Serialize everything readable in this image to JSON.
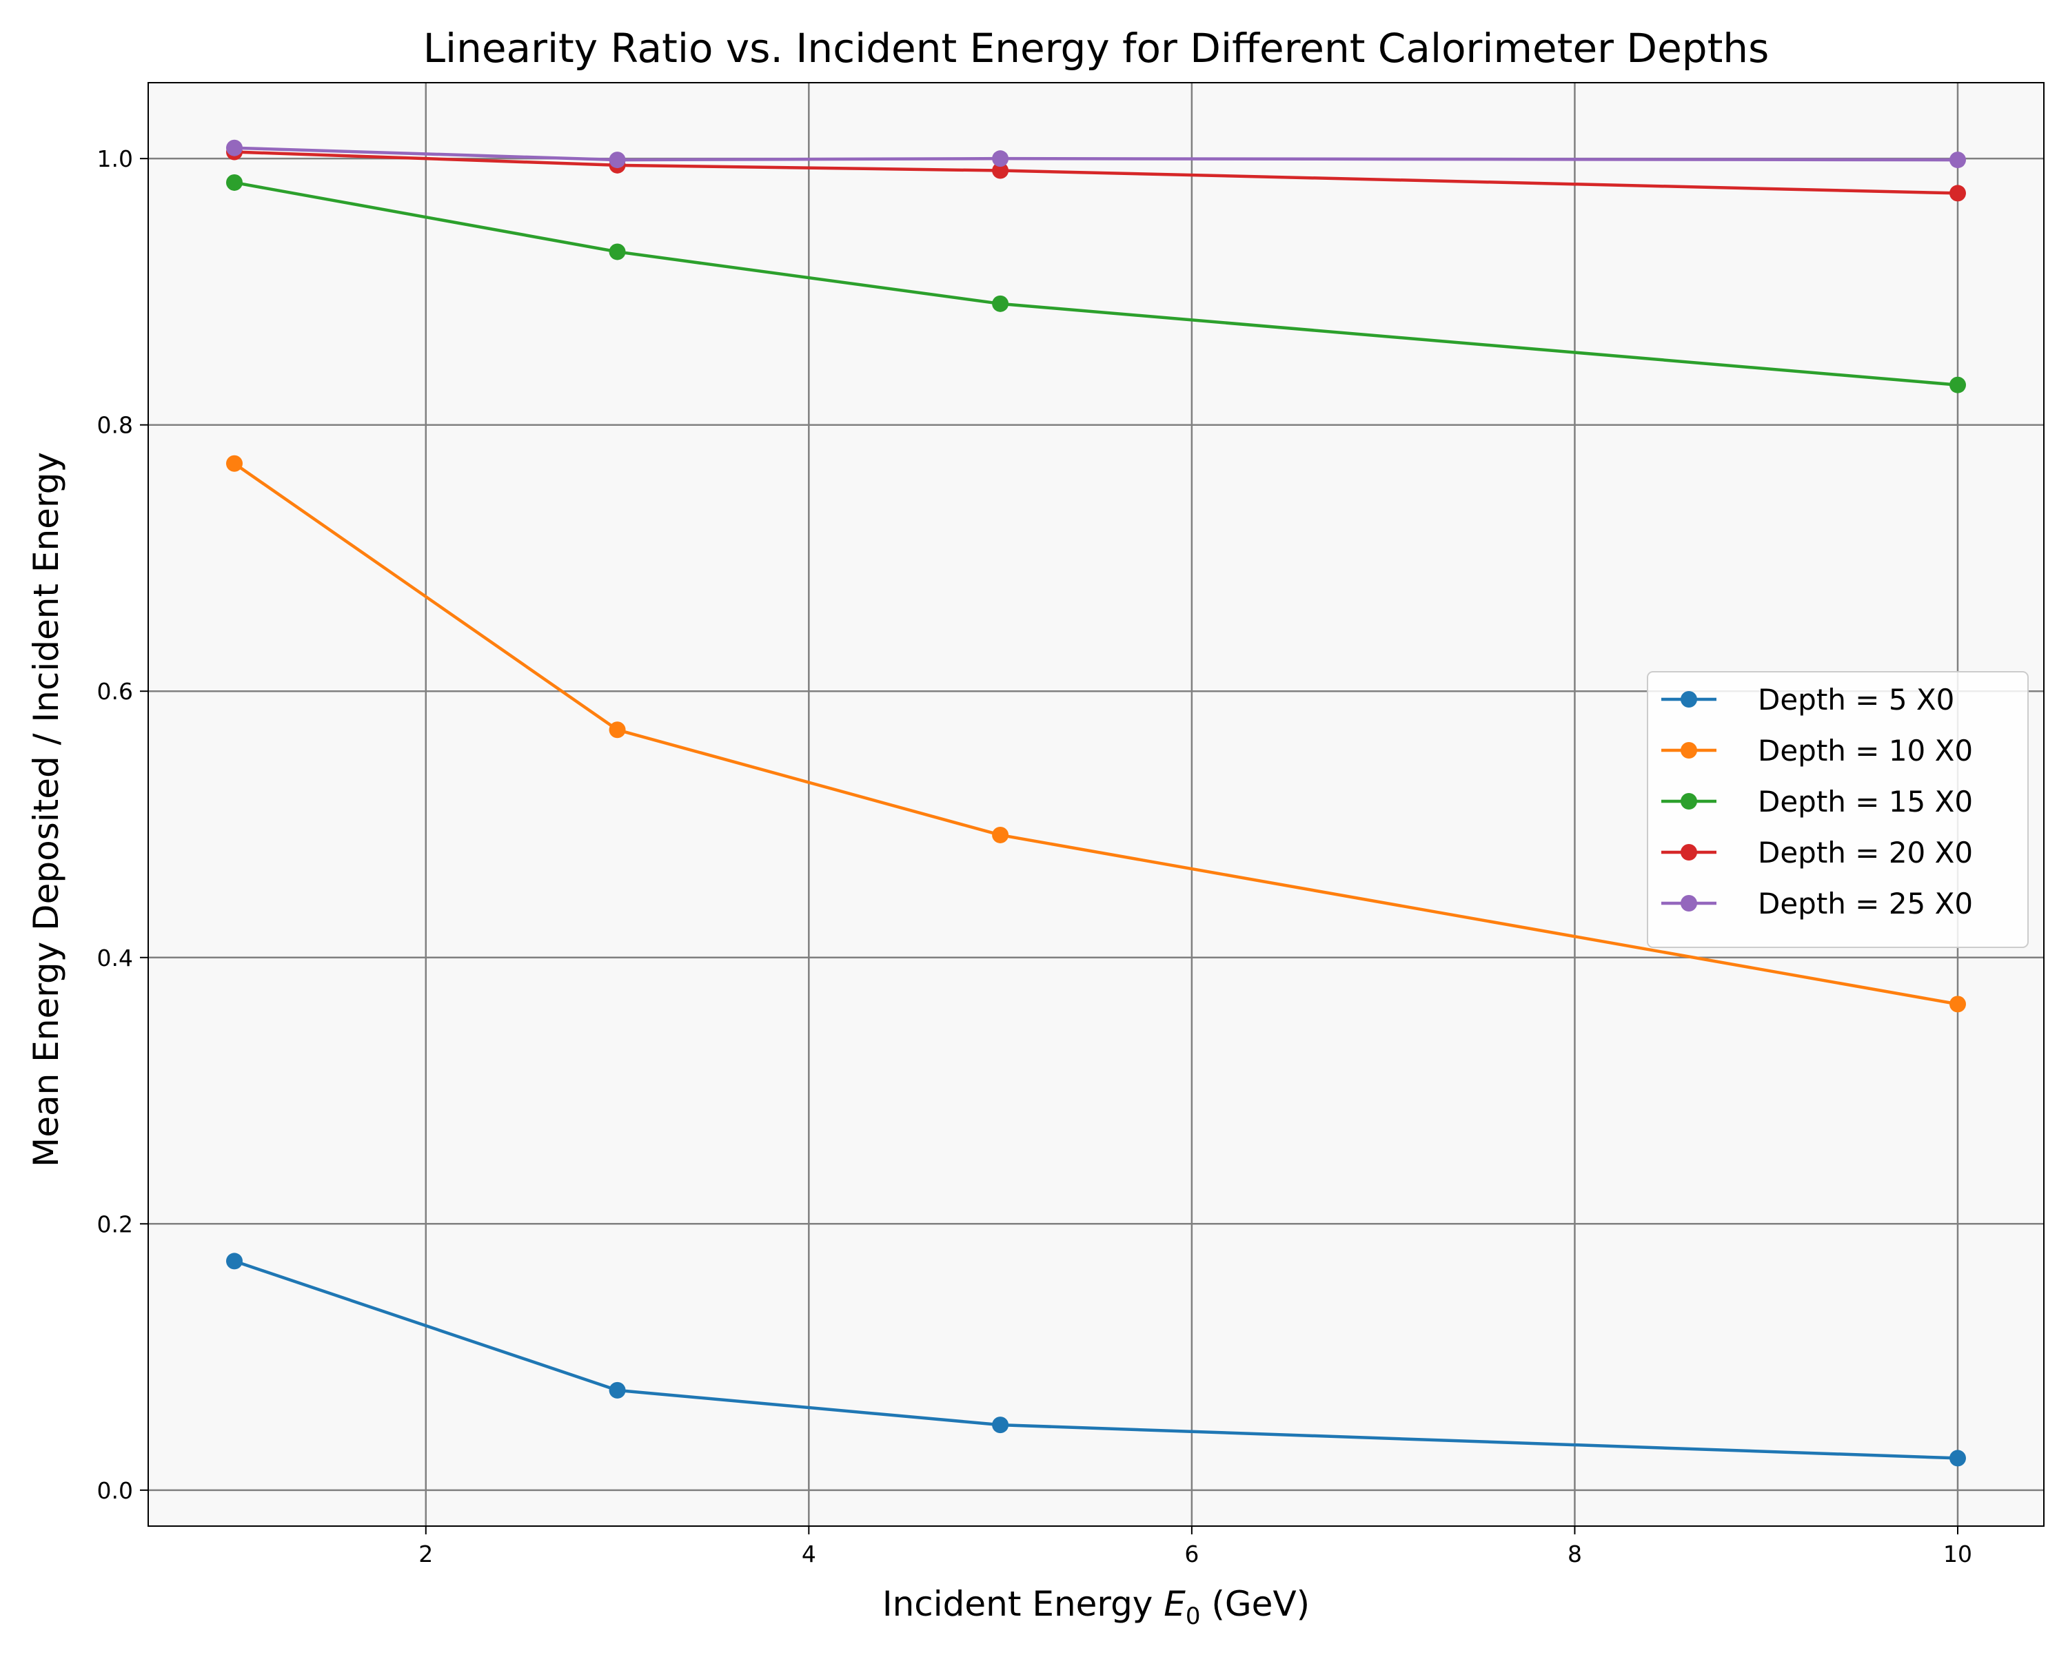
{
  "chart_data": {
    "type": "line",
    "title": "Linearity Ratio vs. Incident Energy for Different Calorimeter Depths",
    "xlabel": {
      "main": "Incident Energy ",
      "var": "E",
      "sub": "0",
      "unit": " (GeV)"
    },
    "ylabel": "Mean Energy Deposited / Incident Energy",
    "xlim": [
      0.55,
      10.45
    ],
    "ylim": [
      -0.027,
      1.057
    ],
    "xticks": [
      2,
      4,
      6,
      8,
      10
    ],
    "yticks": [
      0.0,
      0.2,
      0.4,
      0.6,
      0.8,
      1.0
    ],
    "xtick_labels": [
      "2",
      "4",
      "6",
      "8",
      "10"
    ],
    "ytick_labels": [
      "0.0",
      "0.2",
      "0.4",
      "0.6",
      "0.8",
      "1.0"
    ],
    "grid": true,
    "legend_position": "center-right",
    "plot_background": "#f8f8f8",
    "grid_color": "#808080",
    "x": [
      1,
      3,
      5,
      10
    ],
    "series": [
      {
        "name": "Depth = 5 X0",
        "color": "#1f77b4",
        "values": [
          0.172,
          0.075,
          0.049,
          0.024
        ]
      },
      {
        "name": "Depth = 10 X0",
        "color": "#ff7f0e",
        "values": [
          0.771,
          0.571,
          0.492,
          0.365
        ]
      },
      {
        "name": "Depth = 15 X0",
        "color": "#2ca02c",
        "values": [
          0.982,
          0.93,
          0.891,
          0.83
        ]
      },
      {
        "name": "Depth = 20 X0",
        "color": "#d62728",
        "values": [
          1.005,
          0.995,
          0.991,
          0.974
        ]
      },
      {
        "name": "Depth = 25 X0",
        "color": "#9467bd",
        "values": [
          1.008,
          0.999,
          1.0,
          0.999
        ]
      }
    ]
  }
}
